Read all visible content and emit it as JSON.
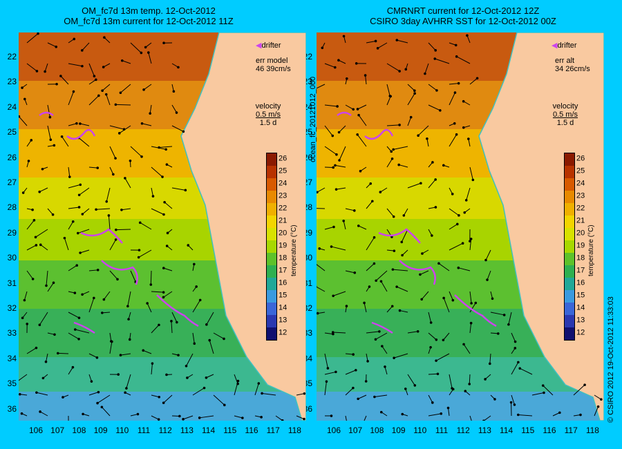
{
  "left_panel": {
    "title_line1": "OM_fc7d 13m temp. 12-Oct-2012",
    "title_line2": "OM_fc7d 13m current for 12-Oct-2012 11Z",
    "drifter_label": "drifter",
    "err_label": "err model",
    "err_value": "46 39cm/s",
    "velocity_label": "velocity",
    "velocity_scale": "0.5 m/s",
    "velocity_time": "1.5 d"
  },
  "right_panel": {
    "title_line1": "CMRNRT current for 12-Oct-2012 12Z",
    "title_line2": "CSIRO 3day AVHRR SST for 12-Oct-2012 00Z",
    "drifter_label": "drifter",
    "err_label": "err alt",
    "err_value": "34 26cm/s",
    "velocity_label": "velocity",
    "velocity_scale": "0.5 m/s",
    "velocity_time": "1.5 d"
  },
  "axes": {
    "lat_ticks": [
      "22",
      "23",
      "24",
      "25",
      "26",
      "27",
      "28",
      "29",
      "30",
      "31",
      "32",
      "33",
      "34",
      "35",
      "36"
    ],
    "lon_ticks": [
      "106",
      "107",
      "108",
      "109",
      "110",
      "111",
      "112",
      "113",
      "114",
      "115",
      "116",
      "117",
      "118"
    ],
    "colorbar_ticks": [
      "26",
      "25",
      "24",
      "23",
      "22",
      "21",
      "20",
      "19",
      "18",
      "17",
      "16",
      "15",
      "14",
      "13",
      "12"
    ],
    "colorbar_label": "temperature (°C)",
    "colorbar_range": [
      12,
      26
    ]
  },
  "side_labels": {
    "left": "ocean_fc_20121012_000",
    "right": "© CSIRO 2012   19-Oct-2012 11:33:03"
  },
  "colors": {
    "background": "#00ccff",
    "land": "#f9c9a0",
    "drifter": "#cc44ee",
    "coastline": "#40c0c0"
  }
}
